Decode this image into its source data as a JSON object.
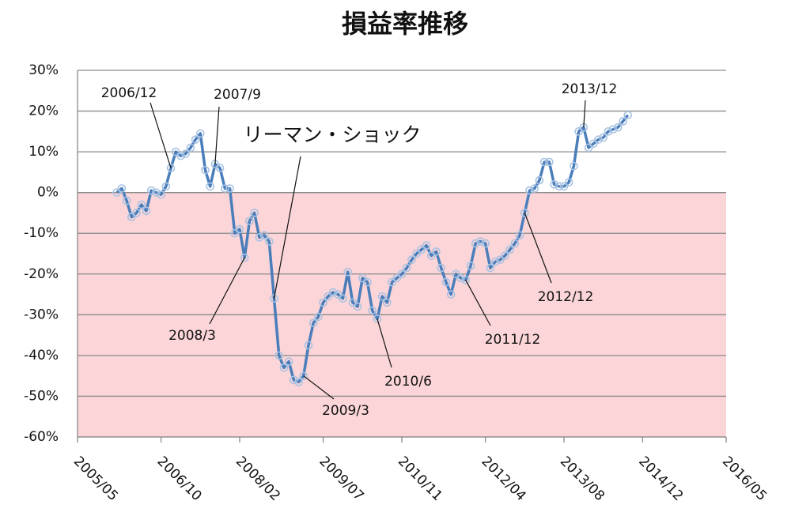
{
  "chart_data": {
    "type": "line",
    "title": "損益率推移",
    "x": [
      "2006/01",
      "2006/02",
      "2006/03",
      "2006/04",
      "2006/05",
      "2006/06",
      "2006/07",
      "2006/08",
      "2006/09",
      "2006/10",
      "2006/11",
      "2006/12",
      "2007/01",
      "2007/02",
      "2007/03",
      "2007/04",
      "2007/05",
      "2007/06",
      "2007/07",
      "2007/08",
      "2007/09",
      "2007/10",
      "2007/11",
      "2007/12",
      "2008/01",
      "2008/02",
      "2008/03",
      "2008/04",
      "2008/05",
      "2008/06",
      "2008/07",
      "2008/08",
      "2008/09",
      "2008/10",
      "2008/11",
      "2008/12",
      "2009/01",
      "2009/02",
      "2009/03",
      "2009/04",
      "2009/05",
      "2009/06",
      "2009/07",
      "2009/08",
      "2009/09",
      "2009/10",
      "2009/11",
      "2009/12",
      "2010/01",
      "2010/02",
      "2010/03",
      "2010/04",
      "2010/05",
      "2010/06",
      "2010/07",
      "2010/08",
      "2010/09",
      "2010/10",
      "2010/11",
      "2010/12",
      "2011/01",
      "2011/02",
      "2011/03",
      "2011/04",
      "2011/05",
      "2011/06",
      "2011/07",
      "2011/08",
      "2011/09",
      "2011/10",
      "2011/11",
      "2011/12",
      "2012/01",
      "2012/02",
      "2012/03",
      "2012/04",
      "2012/05",
      "2012/06",
      "2012/07",
      "2012/08",
      "2012/09",
      "2012/10",
      "2012/11",
      "2012/12",
      "2013/01",
      "2013/02",
      "2013/03",
      "2013/04",
      "2013/05",
      "2013/06",
      "2013/07",
      "2013/08",
      "2013/09",
      "2013/10",
      "2013/11",
      "2013/12",
      "2014/01",
      "2014/02",
      "2014/03",
      "2014/04",
      "2014/05",
      "2014/06",
      "2014/07",
      "2014/08",
      "2014/09"
    ],
    "values": [
      0,
      1,
      -2,
      -6,
      -5,
      -3,
      -4.5,
      0.5,
      0,
      -0.5,
      1.5,
      6,
      10,
      9,
      9.5,
      11,
      13,
      14.5,
      5.5,
      1.5,
      7,
      6,
      1,
      1,
      -10,
      -9,
      -16,
      -7,
      -5,
      -11,
      -10.5,
      -12,
      -26,
      -40,
      -43,
      -41.5,
      -46,
      -46.5,
      -45,
      -37.5,
      -32,
      -30.5,
      -27,
      -25.5,
      -24.5,
      -25,
      -26,
      -19.5,
      -27,
      -28,
      -21,
      -22,
      -29,
      -31,
      -25.5,
      -27,
      -22,
      -21,
      -20,
      -18.5,
      -16.5,
      -15,
      -14,
      -13,
      -15.5,
      -14.5,
      -18.5,
      -22,
      -25,
      -20,
      -21,
      -21.5,
      -18,
      -12.5,
      -12,
      -12.5,
      -18.5,
      -17,
      -16.5,
      -15.5,
      -14,
      -12.5,
      -10.5,
      -5,
      0.5,
      1,
      3,
      7.5,
      7.5,
      2,
      1.5,
      1.5,
      2.5,
      6.5,
      15,
      16,
      11,
      12,
      13,
      13.5,
      15,
      15.5,
      16,
      17.5,
      19
    ],
    "color": "#4a7ebb",
    "xlim": [
      "2005/05",
      "2016/05"
    ],
    "xticks": [
      "2005/05",
      "2006/10",
      "2008/02",
      "2009/07",
      "2010/11",
      "2012/04",
      "2013/08",
      "2014/12",
      "2016/05"
    ],
    "ylim": [
      -60,
      30
    ],
    "yticks": [
      {
        "value": -60,
        "label": "-60%"
      },
      {
        "value": -50,
        "label": "-50%"
      },
      {
        "value": -40,
        "label": "-40%"
      },
      {
        "value": -30,
        "label": "-30%"
      },
      {
        "value": -20,
        "label": "-20%"
      },
      {
        "value": -10,
        "label": "-10%"
      },
      {
        "value": 0,
        "label": "0%"
      },
      {
        "value": 10,
        "label": "10%"
      },
      {
        "value": 20,
        "label": "20%"
      },
      {
        "value": 30,
        "label": "30%"
      }
    ],
    "grid": true,
    "annotations": [
      {
        "text": "2006/12"
      },
      {
        "text": "2007/9"
      },
      {
        "text": "リーマン・ショック"
      },
      {
        "text": "2008/3"
      },
      {
        "text": "2009/3"
      },
      {
        "text": "2010/6"
      },
      {
        "text": "2011/12"
      },
      {
        "text": "2012/12"
      },
      {
        "text": "2013/12"
      }
    ]
  }
}
